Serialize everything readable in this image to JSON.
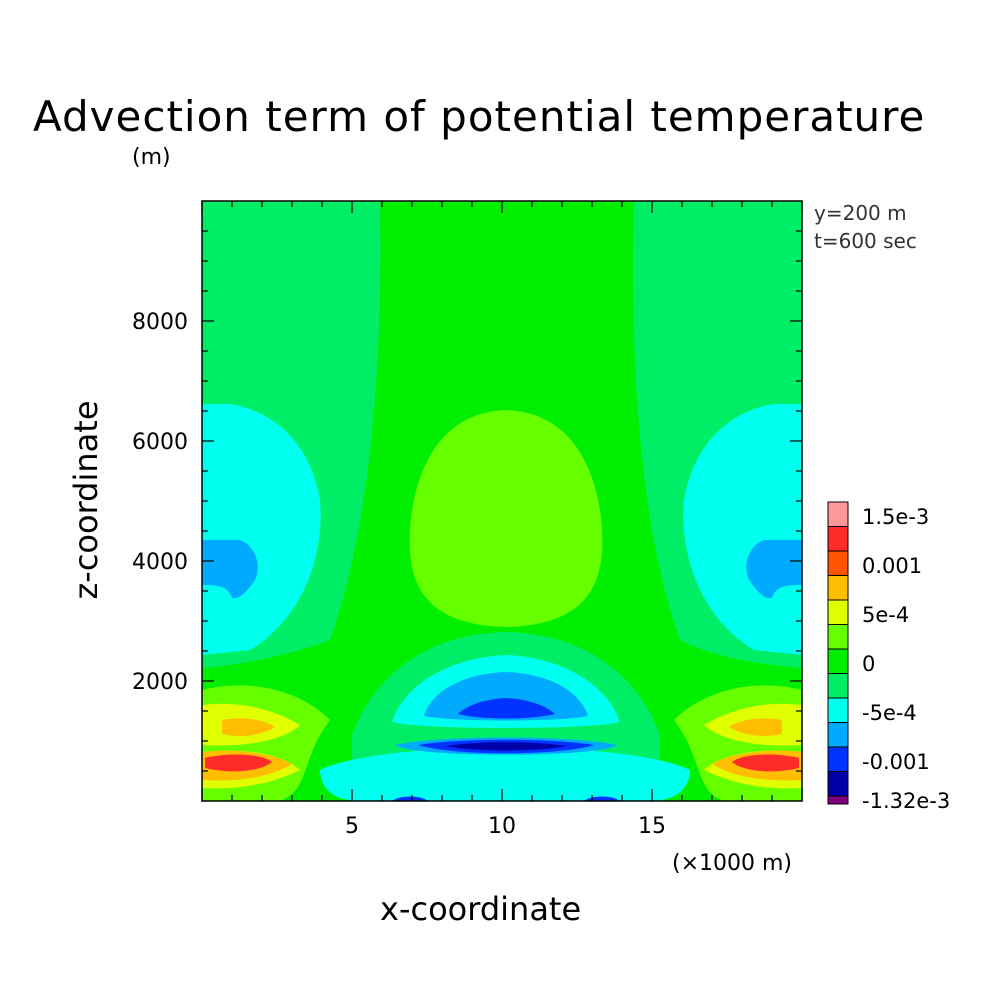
{
  "title": "Advection term of potential temperature",
  "unit": "(m)",
  "info": {
    "y": "y=200 m",
    "t": "t=600 sec"
  },
  "chart_data": {
    "type": "heatmap",
    "title": "Advection term of potential temperature",
    "xlabel": "x-coordinate",
    "ylabel": "z-coordinate",
    "x_unit": "(×1000 m)",
    "z_unit": "(m)",
    "xlim": [
      0,
      20
    ],
    "ylim": [
      0,
      10000
    ],
    "x_ticks": [
      5,
      10,
      15
    ],
    "y_ticks": [
      2000,
      4000,
      6000,
      8000
    ],
    "colorbar": {
      "levels": [
        {
          "label": "1.5e-3",
          "value": 0.0015,
          "color": "#ff9999"
        },
        {
          "label": "",
          "value": 0.00125,
          "color": "#ff2a2a"
        },
        {
          "label": "0.001",
          "value": 0.001,
          "color": "#ff5500"
        },
        {
          "label": "",
          "value": 0.00075,
          "color": "#ffbf00"
        },
        {
          "label": "5e-4",
          "value": 0.0005,
          "color": "#e0ff00"
        },
        {
          "label": "",
          "value": 0.00025,
          "color": "#66ff00"
        },
        {
          "label": "0",
          "value": 0,
          "color": "#00ee00"
        },
        {
          "label": "",
          "value": -0.00025,
          "color": "#00ee66"
        },
        {
          "label": "-5e-4",
          "value": -0.0005,
          "color": "#00ffee"
        },
        {
          "label": "",
          "value": -0.00075,
          "color": "#00aaff"
        },
        {
          "label": "-0.001",
          "value": -0.001,
          "color": "#0033ff"
        },
        {
          "label": "",
          "value": -0.00125,
          "color": "#0000aa"
        },
        {
          "label": "-1.32e-3",
          "value": -0.00132,
          "color": "#800080"
        }
      ]
    },
    "regions": [
      {
        "name": "background",
        "value_range": [
          -0.00025,
          0
        ],
        "color": "#00ee66"
      },
      {
        "name": "central column",
        "value_range": [
          0,
          0.00025
        ],
        "color": "#00ee00"
      },
      {
        "name": "central upper positive core",
        "x_center": 10,
        "z_center": 4700,
        "value_range": [
          0.00025,
          0.0005
        ],
        "color": "#66ff00"
      },
      {
        "name": "side negative cores",
        "x_center": [
          1.5,
          18.5
        ],
        "z_center": 3900,
        "min_value": -0.00075,
        "color": "#00aaff"
      },
      {
        "name": "lower central negative core",
        "x_center": 10,
        "z_center": 1000,
        "min_value": -0.00132,
        "color": "#0000aa"
      },
      {
        "name": "lower side positive cores",
        "x_center": [
          1.5,
          18.5
        ],
        "z_center": 700,
        "max_value": 0.0015,
        "color": "#ff2a2a"
      }
    ],
    "grid": false,
    "legend": "right"
  }
}
